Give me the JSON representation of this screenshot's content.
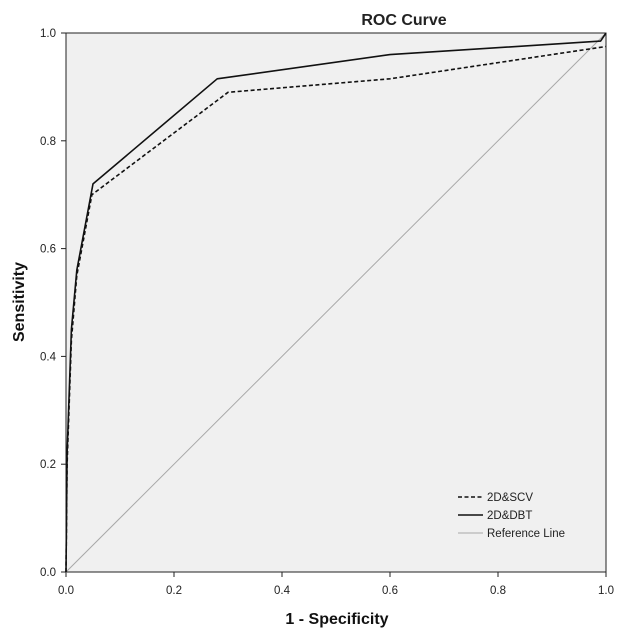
{
  "chart_data": {
    "type": "line",
    "title": "ROC Curve",
    "xlabel": "1 - Specificity",
    "ylabel": "Sensitivity",
    "xlim": [
      0,
      1
    ],
    "ylim": [
      0,
      1
    ],
    "xticks": [
      "0.0",
      "0.2",
      "0.4",
      "0.6",
      "0.8",
      "1.0"
    ],
    "yticks": [
      "0.0",
      "0.2",
      "0.4",
      "0.6",
      "0.8",
      "1.0"
    ],
    "grid": false,
    "legend_position": "bottom-right",
    "plot_background": "#f0f0f0",
    "series": [
      {
        "name": "2D&SCV",
        "style": "dashed",
        "color": "#111111",
        "x": [
          0.0,
          0.002,
          0.01,
          0.02,
          0.048,
          0.3,
          0.6,
          1.0
        ],
        "y": [
          0.0,
          0.2,
          0.43,
          0.55,
          0.7,
          0.89,
          0.915,
          0.975
        ]
      },
      {
        "name": "2D&DBT",
        "style": "solid",
        "color": "#111111",
        "x": [
          0.0,
          0.002,
          0.01,
          0.02,
          0.05,
          0.28,
          0.6,
          0.99,
          1.0
        ],
        "y": [
          0.0,
          0.22,
          0.45,
          0.56,
          0.72,
          0.915,
          0.96,
          0.985,
          1.0
        ]
      },
      {
        "name": "Reference Line",
        "style": "solid",
        "color": "#a8a8a8",
        "x": [
          0.0,
          1.0
        ],
        "y": [
          0.0,
          1.0
        ]
      }
    ]
  }
}
